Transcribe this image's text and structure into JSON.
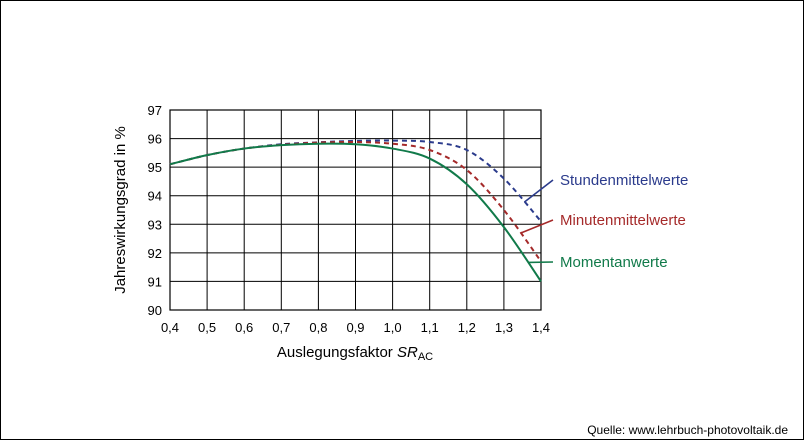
{
  "chart_data": {
    "type": "line",
    "xlabel": "Auslegungsfaktor ",
    "xlabel_var": "SR",
    "xlabel_sub": "AC",
    "ylabel": "Jahreswirkungsgrad in %",
    "xlim": [
      0.4,
      1.4
    ],
    "ylim": [
      90,
      97
    ],
    "x_ticks": [
      "0,4",
      "0,5",
      "0,6",
      "0,7",
      "0,8",
      "0,9",
      "1,0",
      "1,1",
      "1,2",
      "1,3",
      "1,4"
    ],
    "y_ticks": [
      "90",
      "91",
      "92",
      "93",
      "94",
      "95",
      "96",
      "97"
    ],
    "grid": true,
    "legend_placement": "right, inline labels",
    "x": [
      0.4,
      0.5,
      0.6,
      0.7,
      0.8,
      0.9,
      1.0,
      1.1,
      1.2,
      1.3,
      1.4
    ],
    "series": [
      {
        "name": "Stundenmittelwerte",
        "color": "#2b3b8c",
        "style": "dashed",
        "values": [
          95.1,
          95.42,
          95.65,
          95.8,
          95.87,
          95.92,
          95.93,
          95.88,
          95.6,
          94.6,
          93.1
        ]
      },
      {
        "name": "Minutenmittelwerte",
        "color": "#a52a2a",
        "style": "dashed",
        "values": [
          95.1,
          95.42,
          95.65,
          95.78,
          95.86,
          95.88,
          95.82,
          95.6,
          94.9,
          93.5,
          91.7
        ]
      },
      {
        "name": "Momentanwerte",
        "color": "#117a4a",
        "style": "solid",
        "values": [
          95.1,
          95.42,
          95.65,
          95.77,
          95.82,
          95.8,
          95.65,
          95.3,
          94.4,
          92.9,
          91.0
        ]
      }
    ]
  },
  "source": "Quelle: www.lehrbuch-photovoltaik.de"
}
